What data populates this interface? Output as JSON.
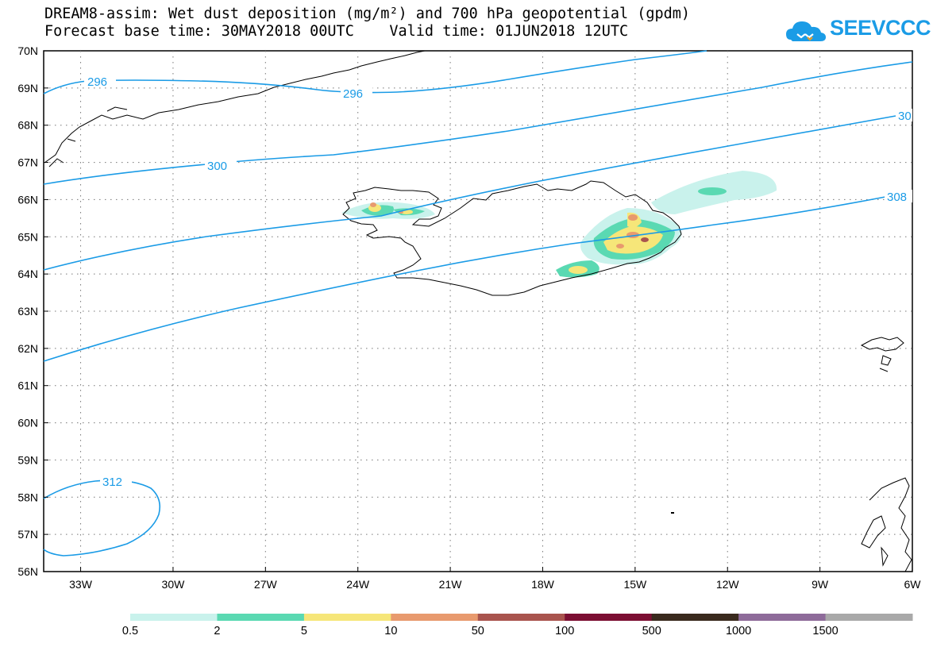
{
  "title_line1": "DREAM8-assim: Wet dust deposition (mg/m²) and 700 hPa geopotential (gpdm)",
  "title_line2": "Forecast base time: 30MAY2018 00UTC    Valid time: 01JUN2018 12UTC",
  "logo_text": "SEEVCCC",
  "lat_labels": [
    "70N",
    "69N",
    "68N",
    "67N",
    "66N",
    "65N",
    "64N",
    "63N",
    "62N",
    "61N",
    "60N",
    "59N",
    "58N",
    "57N",
    "56N"
  ],
  "lon_labels": [
    "33W",
    "30W",
    "27W",
    "24W",
    "21W",
    "18W",
    "15W",
    "12W",
    "9W",
    "6W"
  ],
  "contour_labels": {
    "c296a": "296",
    "c296b": "296",
    "c300": "300",
    "c30x": "30",
    "c308": "308",
    "c312": "312"
  },
  "colorbar": {
    "labels": [
      "0.5",
      "2",
      "5",
      "10",
      "50",
      "100",
      "500",
      "1000",
      "1500"
    ],
    "colors": [
      "#c9f2ec",
      "#5ad9b2",
      "#f6e679",
      "#e89a6e",
      "#a9544e",
      "#7c0f33",
      "#3a2a1e",
      "#8e6b9a",
      "#a9a9a9"
    ]
  }
}
